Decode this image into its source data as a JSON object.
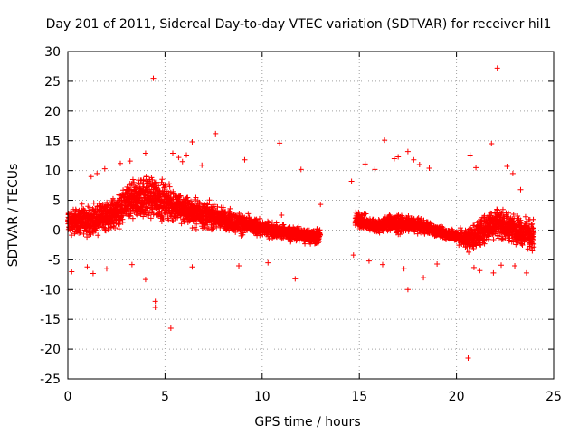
{
  "chart_data": {
    "type": "scatter",
    "title": "Day 201 of 2011, Sidereal Day-to-day VTEC variation (SDTVAR) for receiver hil1",
    "xlabel": "GPS time / hours",
    "ylabel": "SDTVAR / TECUs",
    "xlim": [
      0,
      25
    ],
    "ylim": [
      -25,
      30
    ],
    "xticks": [
      0,
      5,
      10,
      15,
      20,
      25
    ],
    "yticks": [
      -25,
      -20,
      -15,
      -10,
      -5,
      0,
      5,
      10,
      15,
      20,
      25,
      30
    ],
    "grid": true,
    "marker": "+",
    "series_color": "#ff0000",
    "series": [
      {
        "name": "SDTVAR",
        "points": [
          [
            4.4,
            25.5
          ],
          [
            22.1,
            27.2
          ],
          [
            7.6,
            16.2
          ],
          [
            10.9,
            14.6
          ],
          [
            6.4,
            14.8
          ],
          [
            16.3,
            15.1
          ],
          [
            21.8,
            14.5
          ],
          [
            17.5,
            13.2
          ],
          [
            17.8,
            11.8
          ],
          [
            16.8,
            12.0
          ],
          [
            18.1,
            11.0
          ],
          [
            18.6,
            10.4
          ],
          [
            15.8,
            10.2
          ],
          [
            15.3,
            11.1
          ],
          [
            17.0,
            12.3
          ],
          [
            20.7,
            12.6
          ],
          [
            21.0,
            10.5
          ],
          [
            22.6,
            10.7
          ],
          [
            9.1,
            11.8
          ],
          [
            5.4,
            12.9
          ],
          [
            5.7,
            12.2
          ],
          [
            5.9,
            11.5
          ],
          [
            6.9,
            10.9
          ],
          [
            12.0,
            10.2
          ],
          [
            1.2,
            9.0
          ],
          [
            1.5,
            9.5
          ],
          [
            1.9,
            10.3
          ],
          [
            2.7,
            11.2
          ],
          [
            3.2,
            11.6
          ],
          [
            4.0,
            12.9
          ],
          [
            6.1,
            12.6
          ],
          [
            22.9,
            9.5
          ],
          [
            23.3,
            6.8
          ],
          [
            14.6,
            8.2
          ],
          [
            13.0,
            4.3
          ],
          [
            11.0,
            2.5
          ],
          [
            4.5,
            -13.0
          ],
          [
            4.5,
            -12.0
          ],
          [
            5.3,
            -16.5
          ],
          [
            17.5,
            -10.0
          ],
          [
            20.6,
            -21.5
          ],
          [
            4.0,
            -8.3
          ],
          [
            11.7,
            -8.2
          ],
          [
            6.4,
            -6.2
          ],
          [
            8.8,
            -6.0
          ],
          [
            10.3,
            -5.5
          ],
          [
            15.5,
            -5.2
          ],
          [
            16.2,
            -5.8
          ],
          [
            19.0,
            -5.7
          ],
          [
            20.9,
            -6.3
          ],
          [
            21.9,
            -7.2
          ],
          [
            23.0,
            -6.0
          ],
          [
            23.6,
            -7.2
          ],
          [
            1.0,
            -6.2
          ],
          [
            1.3,
            -7.3
          ],
          [
            0.2,
            -7.0
          ],
          [
            2.0,
            -6.5
          ],
          [
            14.7,
            -4.2
          ],
          [
            12.2,
            -2.3
          ],
          [
            23.9,
            -3.5
          ],
          [
            3.3,
            -5.8
          ],
          [
            17.3,
            -6.5
          ],
          [
            18.3,
            -8.0
          ],
          [
            21.2,
            -6.8
          ],
          [
            22.3,
            -5.9
          ]
        ],
        "dense_band": [
          [
            0.0,
            1.4,
            3.0
          ],
          [
            0.5,
            1.5,
            3.0
          ],
          [
            1.0,
            1.6,
            3.1
          ],
          [
            1.5,
            1.8,
            3.2
          ],
          [
            2.0,
            2.3,
            3.4
          ],
          [
            2.5,
            3.1,
            3.8
          ],
          [
            3.0,
            4.1,
            4.2
          ],
          [
            3.5,
            5.0,
            4.6
          ],
          [
            4.0,
            5.6,
            5.0
          ],
          [
            4.5,
            5.5,
            4.8
          ],
          [
            5.0,
            4.8,
            4.2
          ],
          [
            5.5,
            4.0,
            3.8
          ],
          [
            6.0,
            3.4,
            3.4
          ],
          [
            6.5,
            3.0,
            3.2
          ],
          [
            7.0,
            2.6,
            3.0
          ],
          [
            7.5,
            2.2,
            2.8
          ],
          [
            8.0,
            1.8,
            2.6
          ],
          [
            8.5,
            1.4,
            2.4
          ],
          [
            9.0,
            1.0,
            2.2
          ],
          [
            9.5,
            0.6,
            2.0
          ],
          [
            10.0,
            0.3,
            1.8
          ],
          [
            10.5,
            0.0,
            1.7
          ],
          [
            11.0,
            -0.3,
            1.6
          ],
          [
            11.5,
            -0.6,
            1.6
          ],
          [
            12.0,
            -0.8,
            1.6
          ],
          [
            12.5,
            -1.0,
            1.8
          ],
          [
            13.0,
            -1.0,
            2.0
          ],
          [
            14.8,
            1.8,
            1.8
          ],
          [
            15.2,
            1.4,
            1.7
          ],
          [
            15.6,
            0.8,
            1.6
          ],
          [
            16.0,
            0.6,
            1.6
          ],
          [
            16.5,
            1.2,
            1.9
          ],
          [
            17.0,
            1.0,
            2.0
          ],
          [
            17.5,
            1.0,
            1.8
          ],
          [
            18.0,
            0.8,
            1.5
          ],
          [
            18.5,
            0.4,
            1.4
          ],
          [
            19.0,
            -0.2,
            1.3
          ],
          [
            19.5,
            -0.6,
            1.2
          ],
          [
            20.0,
            -1.0,
            1.4
          ],
          [
            20.5,
            -1.6,
            2.4
          ],
          [
            21.0,
            -0.8,
            3.0
          ],
          [
            21.5,
            0.2,
            3.2
          ],
          [
            22.0,
            1.4,
            3.6
          ],
          [
            22.5,
            0.8,
            3.2
          ],
          [
            23.0,
            0.2,
            3.0
          ],
          [
            23.5,
            -0.4,
            3.2
          ],
          [
            24.0,
            -1.0,
            3.4
          ]
        ]
      }
    ]
  }
}
